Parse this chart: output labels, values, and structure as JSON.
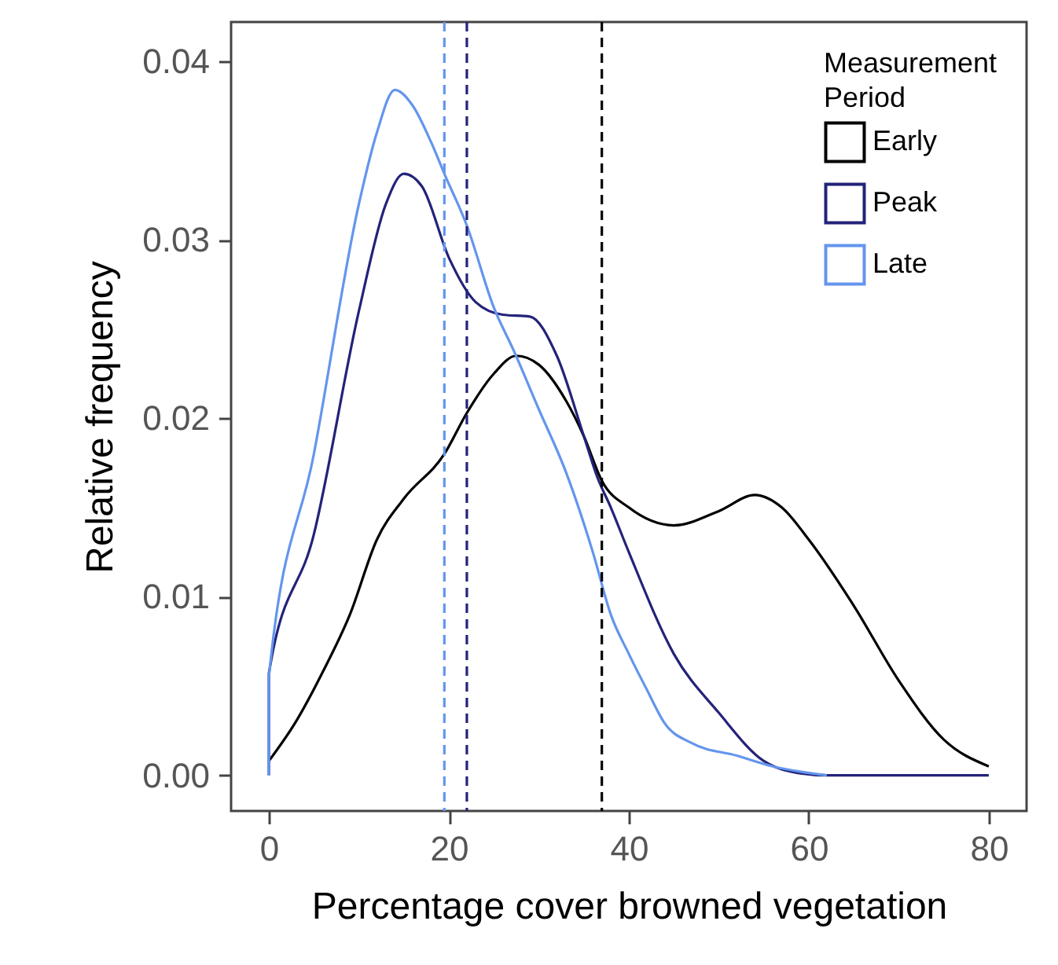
{
  "chart_data": {
    "type": "line",
    "xlabel": "Percentage cover browned vegetation",
    "ylabel": "Relative frequency",
    "legend_title": "Measurement Period",
    "legend": "top right",
    "grid": false,
    "line_style": "solid",
    "marker": "none",
    "xlim": [
      -4.2,
      84.2
    ],
    "ylim": [
      -0.002,
      0.0422
    ],
    "xticks": [
      0,
      20,
      40,
      60,
      80
    ],
    "yticks": [
      {
        "value": 0,
        "label": "0.00"
      },
      {
        "value": 0.01,
        "label": "0.01"
      },
      {
        "value": 0.02,
        "label": "0.02"
      },
      {
        "value": 0.03,
        "label": "0.03"
      },
      {
        "value": 0.04,
        "label": "0.04"
      }
    ],
    "series": [
      {
        "name": "Early",
        "color": "#000000",
        "x": [
          0,
          3,
          6,
          9,
          12,
          15,
          19.5,
          22,
          25,
          27.5,
          30,
          33,
          35,
          37,
          40,
          45,
          50,
          54,
          57,
          60,
          65,
          70,
          75,
          80
        ],
        "values": [
          0.0008,
          0.003,
          0.0058,
          0.009,
          0.0132,
          0.0155,
          0.018,
          0.0203,
          0.0225,
          0.0235,
          0.023,
          0.021,
          0.019,
          0.0165,
          0.015,
          0.014,
          0.0148,
          0.0157,
          0.015,
          0.0132,
          0.0095,
          0.0053,
          0.002,
          0.0005
        ]
      },
      {
        "name": "Peak",
        "color": "#23237a",
        "x": [
          0,
          0,
          5,
          10,
          13,
          15,
          17,
          20,
          23,
          26,
          29,
          32,
          35,
          36.5,
          38,
          40,
          45,
          50,
          55,
          58,
          62,
          80
        ],
        "values": [
          0,
          0.0057,
          0.0135,
          0.026,
          0.032,
          0.0337,
          0.033,
          0.029,
          0.0265,
          0.0258,
          0.0257,
          0.0235,
          0.019,
          0.0167,
          0.015,
          0.0125,
          0.0068,
          0.0035,
          0.0008,
          0.0002,
          0,
          0
        ]
      },
      {
        "name": "Late",
        "color": "#6495ed",
        "x": [
          0,
          0,
          5,
          10,
          12,
          14,
          16,
          18,
          19.5,
          22,
          25,
          27.2,
          30,
          33,
          36,
          38,
          40,
          42,
          44,
          47,
          52,
          56,
          62
        ],
        "values": [
          0,
          0.0055,
          0.018,
          0.032,
          0.036,
          0.0384,
          0.0375,
          0.0355,
          0.0337,
          0.0308,
          0.0262,
          0.0238,
          0.0205,
          0.017,
          0.0125,
          0.009,
          0.0068,
          0.0048,
          0.0029,
          0.0018,
          0.0011,
          0.0005,
          0
        ]
      }
    ],
    "ref_lines": [
      {
        "axis": "x",
        "value": 19.5,
        "color": "#6495ed",
        "line_style": "dashed"
      },
      {
        "axis": "x",
        "value": 22,
        "color": "#23237a",
        "line_style": "dashed"
      },
      {
        "axis": "x",
        "value": 37,
        "color": "#000000",
        "line_style": "dashed"
      }
    ]
  }
}
